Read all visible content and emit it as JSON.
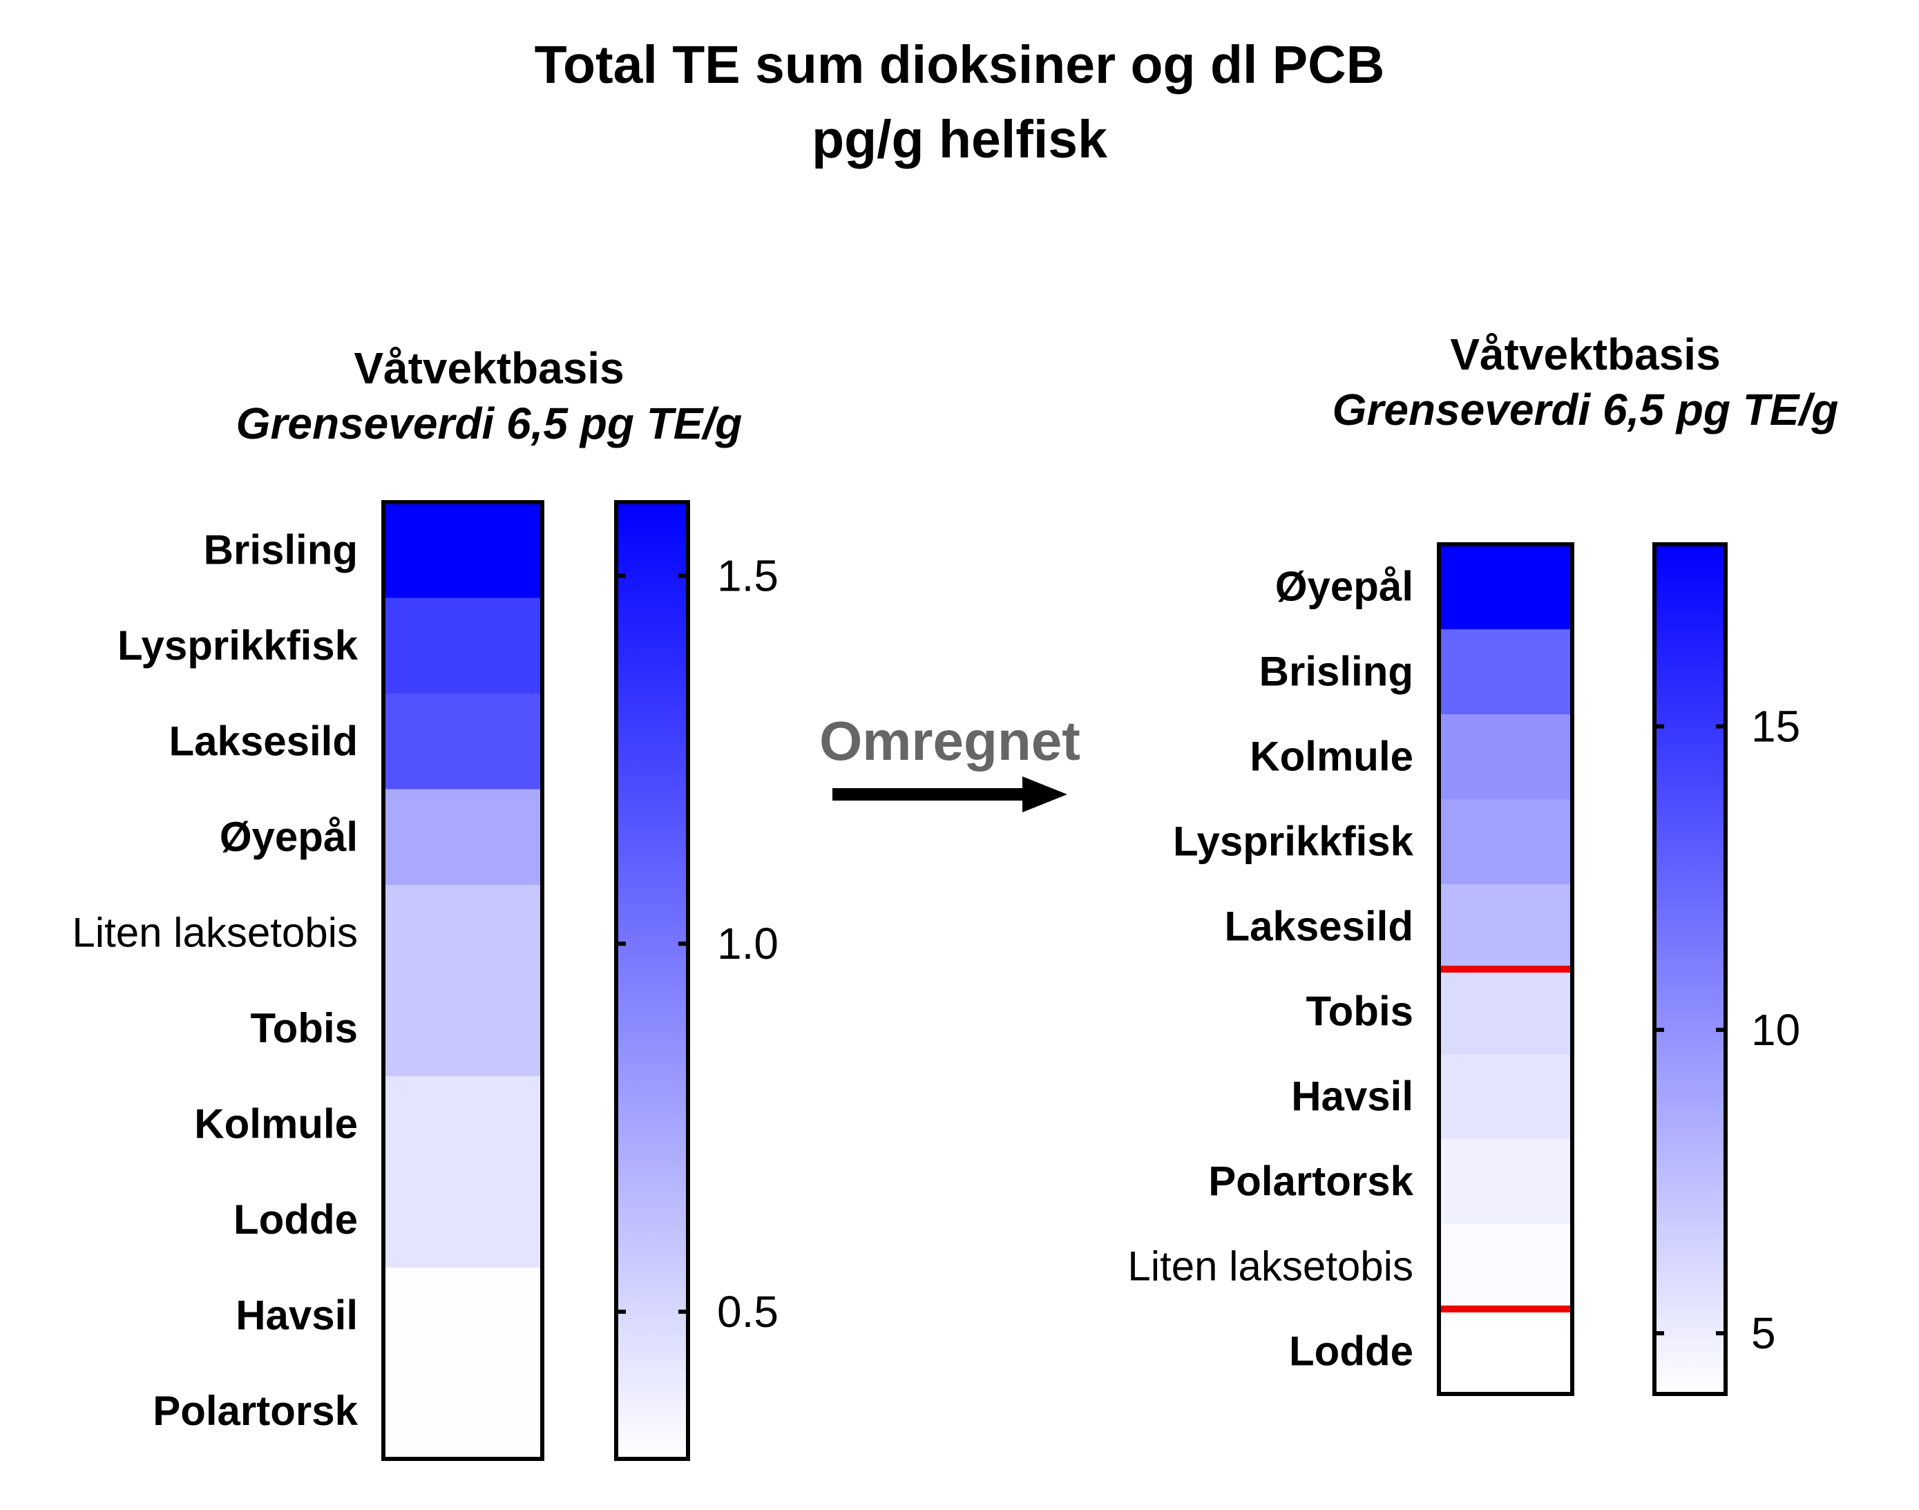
{
  "title": "Total TE sum dioksiner og dl PCB",
  "subtitle": "pg/g helfisk",
  "arrow_label": "Omregnet",
  "colors": {
    "max": "#0000ff",
    "min": "#ffffff",
    "threshold_line": "#ee0000",
    "arrow_label": "#666666"
  },
  "chart_data": [
    {
      "type": "heatmap",
      "title": "Våtvektbasis",
      "subtitle": "Grenseverdi 6,5 pg TE/g",
      "categories": [
        "Brisling",
        "Lysprikkfisk",
        "Laksesild",
        "Øyepål",
        "Liten laksetobis",
        "Tobis",
        "Kolmule",
        "Lodde",
        "Havsil",
        "Polartorsk"
      ],
      "bold": [
        true,
        true,
        true,
        true,
        false,
        true,
        true,
        true,
        true,
        true
      ],
      "values": [
        1.6,
        1.28,
        1.18,
        0.74,
        0.58,
        0.58,
        0.44,
        0.44,
        0.31,
        0.31
      ],
      "color_range": [
        0.3,
        1.6
      ],
      "colorbar_ticks": [
        "0.5",
        "1.0",
        "1.5"
      ],
      "colorbar_tick_values": [
        0.5,
        1.0,
        1.5
      ],
      "thresholds": []
    },
    {
      "type": "heatmap",
      "title": "Våtvektbasis",
      "subtitle": "Grenseverdi 6,5 pg TE/g",
      "categories": [
        "Øyepål",
        "Brisling",
        "Kolmule",
        "Lysprikkfisk",
        "Laksesild",
        "Tobis",
        "Havsil",
        "Polartorsk",
        "Liten laksetobis",
        "Lodde"
      ],
      "bold": [
        true,
        true,
        true,
        true,
        true,
        true,
        true,
        true,
        false,
        true
      ],
      "values": [
        18,
        12.5,
        10,
        9.2,
        7.8,
        6.0,
        5.5,
        4.8,
        4.3,
        4.0
      ],
      "color_range": [
        4,
        18
      ],
      "colorbar_ticks": [
        "5",
        "10",
        "15"
      ],
      "colorbar_tick_values": [
        5,
        10,
        15
      ],
      "thresholds": [
        {
          "between": [
            "Laksesild",
            "Tobis"
          ]
        },
        {
          "between": [
            "Liten laksetobis",
            "Lodde"
          ]
        }
      ]
    }
  ]
}
